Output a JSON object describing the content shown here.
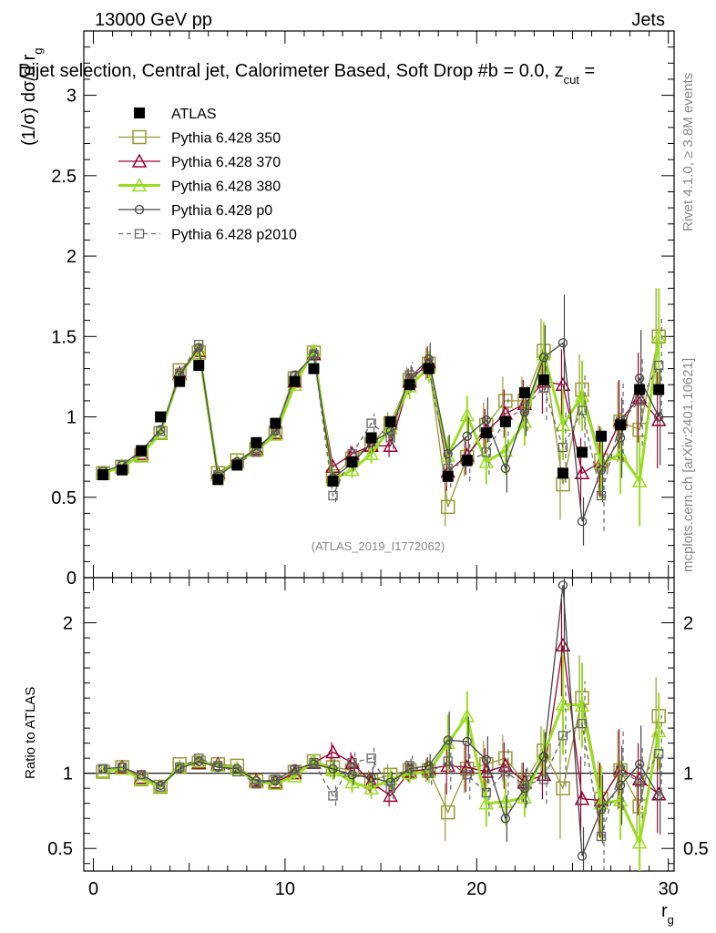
{
  "header": {
    "left": "13000 GeV pp",
    "right": "Jets",
    "title": "Dijet selection, Central jet, Calorimeter Based, Soft Drop #b = 0.0, z",
    "title_sub": "cut",
    "title_tail": " ="
  },
  "side_labels": {
    "rivet": "Rivet 4.1.0, ≥ 3.8M events",
    "mcplots": "mcplots.cern.ch [arXiv:2401.10621]"
  },
  "watermark": "(ATLAS_2019_I1772062)",
  "chart_data": [
    {
      "type": "line",
      "panel": "main",
      "ylabel": "(1/σ) dσ/d r",
      "ylabel_sub": "g",
      "xlabel": "r",
      "xlabel_sub": "g",
      "xlim": [
        -0.5,
        30.3
      ],
      "ylim": [
        0,
        3.4
      ],
      "x_ticks": [
        0,
        10,
        20,
        30
      ],
      "y_ticks": [
        0,
        0.5,
        1,
        1.5,
        2,
        2.5,
        3
      ],
      "y_tick_labels": [
        "0",
        "0.5",
        "1",
        "1.5",
        "2",
        "2.5",
        "3"
      ],
      "x": [
        0.5,
        1.5,
        2.5,
        3.5,
        4.5,
        5.5,
        6.5,
        7.5,
        8.5,
        9.5,
        10.5,
        11.5,
        12.5,
        13.5,
        14.5,
        15.5,
        16.5,
        17.5,
        18.5,
        19.5,
        20.5,
        21.5,
        22.5,
        23.5,
        24.5,
        25.5,
        26.5,
        27.5,
        28.5,
        29.5
      ],
      "legend": [
        "ATLAS",
        "Pythia 6.428 350",
        "Pythia 6.428 370",
        "Pythia 6.428 380",
        "Pythia 6.428 p0",
        "Pythia 6.428 p2010"
      ],
      "series": [
        {
          "name": "ATLAS",
          "color": "#000000",
          "marker": "filled-square",
          "line": "none",
          "values": [
            0.64,
            0.67,
            0.79,
            1.0,
            1.22,
            1.32,
            0.61,
            0.7,
            0.84,
            0.96,
            1.22,
            1.3,
            0.6,
            0.72,
            0.87,
            0.97,
            1.2,
            1.3,
            0.63,
            0.73,
            0.9,
            0.97,
            1.15,
            1.23,
            0.65,
            0.78,
            0.88,
            0.95,
            1.17,
            1.17
          ]
        },
        {
          "name": "Pythia 6.428 350",
          "color": "#999933",
          "marker": "open-square",
          "line": "solid",
          "values": [
            0.65,
            0.69,
            0.76,
            0.9,
            1.29,
            1.4,
            0.65,
            0.73,
            0.8,
            0.9,
            1.24,
            1.4,
            0.63,
            0.74,
            0.83,
            0.96,
            1.23,
            1.33,
            0.44,
            0.75,
            0.95,
            1.1,
            1.1,
            1.41,
            0.58,
            1.17,
            0.73,
            0.97,
            0.92,
            1.5
          ],
          "errors": [
            0.01,
            0.01,
            0.01,
            0.01,
            0.02,
            0.02,
            0.01,
            0.01,
            0.01,
            0.02,
            0.03,
            0.04,
            0.04,
            0.05,
            0.06,
            0.07,
            0.08,
            0.1,
            0.12,
            0.12,
            0.14,
            0.15,
            0.15,
            0.2,
            0.22,
            0.22,
            0.22,
            0.25,
            0.28,
            0.3
          ]
        },
        {
          "name": "Pythia 6.428 370",
          "color": "#990033",
          "marker": "open-triangle",
          "line": "solid",
          "values": [
            0.65,
            0.69,
            0.77,
            0.9,
            1.27,
            1.41,
            0.65,
            0.72,
            0.8,
            0.9,
            1.22,
            1.39,
            0.69,
            0.77,
            0.82,
            0.82,
            1.22,
            1.34,
            0.66,
            0.76,
            0.91,
            1.02,
            1.08,
            1.22,
            1.2,
            0.65,
            0.72,
            0.98,
            1.12,
            0.98
          ],
          "errors": [
            0.01,
            0.01,
            0.01,
            0.01,
            0.02,
            0.02,
            0.01,
            0.01,
            0.01,
            0.02,
            0.03,
            0.04,
            0.04,
            0.05,
            0.06,
            0.07,
            0.08,
            0.1,
            0.12,
            0.12,
            0.14,
            0.15,
            0.15,
            0.2,
            0.22,
            0.22,
            0.22,
            0.25,
            0.28,
            0.3
          ]
        },
        {
          "name": "Pythia 6.428 380",
          "color": "#99dd22",
          "marker": "open-triangle",
          "line": "solid-thick",
          "values": [
            0.65,
            0.69,
            0.76,
            0.9,
            1.26,
            1.42,
            0.64,
            0.72,
            0.79,
            0.89,
            1.2,
            1.41,
            0.61,
            0.67,
            0.77,
            0.93,
            1.19,
            1.31,
            0.76,
            1.01,
            0.72,
            0.79,
            0.97,
            1.39,
            0.95,
            1.13,
            0.71,
            0.77,
            0.6,
            1.5
          ],
          "errors": [
            0.01,
            0.01,
            0.01,
            0.01,
            0.02,
            0.02,
            0.01,
            0.01,
            0.01,
            0.02,
            0.03,
            0.04,
            0.04,
            0.05,
            0.06,
            0.07,
            0.08,
            0.1,
            0.12,
            0.12,
            0.14,
            0.15,
            0.15,
            0.2,
            0.22,
            0.22,
            0.22,
            0.25,
            0.28,
            0.3
          ]
        },
        {
          "name": "Pythia 6.428 p0",
          "color": "#444444",
          "marker": "open-circle",
          "line": "solid",
          "values": [
            0.66,
            0.7,
            0.79,
            0.92,
            1.26,
            1.43,
            0.63,
            0.72,
            0.8,
            0.91,
            1.26,
            1.38,
            0.62,
            0.71,
            0.84,
            0.91,
            1.24,
            1.36,
            0.77,
            0.88,
            0.98,
            0.68,
            1.03,
            1.37,
            1.46,
            0.35,
            0.67,
            0.87,
            1.24,
            1.0
          ],
          "errors": [
            0.01,
            0.01,
            0.01,
            0.01,
            0.02,
            0.02,
            0.01,
            0.01,
            0.01,
            0.02,
            0.03,
            0.04,
            0.04,
            0.05,
            0.06,
            0.07,
            0.08,
            0.1,
            0.12,
            0.12,
            0.14,
            0.15,
            0.15,
            0.2,
            0.3,
            0.15,
            0.2,
            0.25,
            0.3,
            0.3
          ]
        },
        {
          "name": "Pythia 6.428 p2010",
          "color": "#666666",
          "marker": "open-square-small",
          "line": "dashed",
          "values": [
            0.66,
            0.7,
            0.78,
            0.91,
            1.27,
            1.45,
            0.64,
            0.71,
            0.78,
            0.92,
            1.25,
            1.39,
            0.51,
            0.77,
            0.96,
            0.87,
            1.26,
            1.3,
            0.68,
            0.72,
            0.78,
            0.98,
            1.06,
            1.18,
            0.81,
            1.04,
            0.51,
            0.97,
            1.1,
            1.32
          ],
          "errors": [
            0.01,
            0.01,
            0.01,
            0.01,
            0.02,
            0.02,
            0.01,
            0.01,
            0.01,
            0.02,
            0.03,
            0.04,
            0.04,
            0.05,
            0.06,
            0.07,
            0.08,
            0.1,
            0.12,
            0.12,
            0.14,
            0.15,
            0.15,
            0.2,
            0.22,
            0.22,
            0.22,
            0.25,
            0.28,
            0.3
          ]
        }
      ]
    },
    {
      "type": "line",
      "panel": "ratio",
      "ylabel": "Ratio to ATLAS",
      "xlim": [
        -0.5,
        30.3
      ],
      "ylim": [
        0.35,
        2.3
      ],
      "y_ticks": [
        0.5,
        1,
        2
      ],
      "y_tick_labels": [
        "0.5",
        "1",
        "2"
      ],
      "x_ticks": [
        0,
        10,
        20,
        30
      ],
      "x_tick_labels": [
        "0",
        "10",
        "20",
        "30"
      ],
      "reference": 1.0,
      "x": [
        0.5,
        1.5,
        2.5,
        3.5,
        4.5,
        5.5,
        6.5,
        7.5,
        8.5,
        9.5,
        10.5,
        11.5,
        12.5,
        13.5,
        14.5,
        15.5,
        16.5,
        17.5,
        18.5,
        19.5,
        20.5,
        21.5,
        22.5,
        23.5,
        24.5,
        25.5,
        26.5,
        27.5,
        28.5,
        29.5
      ],
      "series": [
        {
          "name": "Pythia 6.428 350",
          "values": [
            1.01,
            1.04,
            0.96,
            0.91,
            1.06,
            1.07,
            1.06,
            1.05,
            0.95,
            0.94,
            1.01,
            1.08,
            1.04,
            1.02,
            0.95,
            0.99,
            1.02,
            1.02,
            0.74,
            1.03,
            1.06,
            1.1,
            0.94,
            1.15,
            0.9,
            1.5,
            0.83,
            1.02,
            0.78,
            1.38
          ]
        },
        {
          "name": "Pythia 6.428 370",
          "values": [
            1.01,
            1.04,
            0.97,
            0.91,
            1.04,
            1.07,
            1.06,
            1.03,
            0.95,
            0.94,
            1.0,
            1.07,
            1.14,
            1.07,
            0.94,
            0.85,
            1.01,
            1.03,
            1.05,
            1.04,
            1.01,
            1.05,
            0.94,
            0.99,
            1.85,
            0.83,
            0.82,
            1.03,
            0.96,
            0.86
          ]
        },
        {
          "name": "Pythia 6.428 380",
          "values": [
            1.01,
            1.03,
            0.96,
            0.91,
            1.04,
            1.08,
            1.05,
            1.03,
            0.94,
            0.93,
            0.98,
            1.08,
            1.02,
            0.94,
            0.9,
            0.96,
            1.0,
            1.01,
            1.2,
            1.38,
            0.8,
            0.81,
            0.84,
            1.13,
            1.46,
            1.45,
            0.8,
            0.82,
            0.54,
            1.28
          ]
        },
        {
          "name": "Pythia 6.428 p0",
          "values": [
            1.03,
            1.04,
            0.99,
            0.92,
            1.03,
            1.08,
            1.04,
            1.03,
            0.95,
            0.95,
            1.03,
            1.06,
            1.03,
            0.99,
            0.97,
            0.94,
            1.03,
            1.05,
            1.22,
            1.21,
            1.09,
            0.7,
            0.9,
            1.11,
            2.25,
            0.45,
            0.76,
            0.92,
            1.06,
            0.85
          ]
        },
        {
          "name": "Pythia 6.428 p2010",
          "values": [
            1.03,
            1.04,
            0.99,
            0.91,
            1.04,
            1.1,
            1.05,
            1.01,
            0.93,
            0.96,
            1.02,
            1.07,
            0.85,
            1.07,
            1.1,
            0.9,
            1.05,
            1.0,
            1.08,
            0.99,
            0.87,
            1.01,
            0.92,
            0.96,
            1.25,
            1.33,
            0.58,
            1.02,
            0.94,
            1.13
          ]
        }
      ]
    }
  ]
}
